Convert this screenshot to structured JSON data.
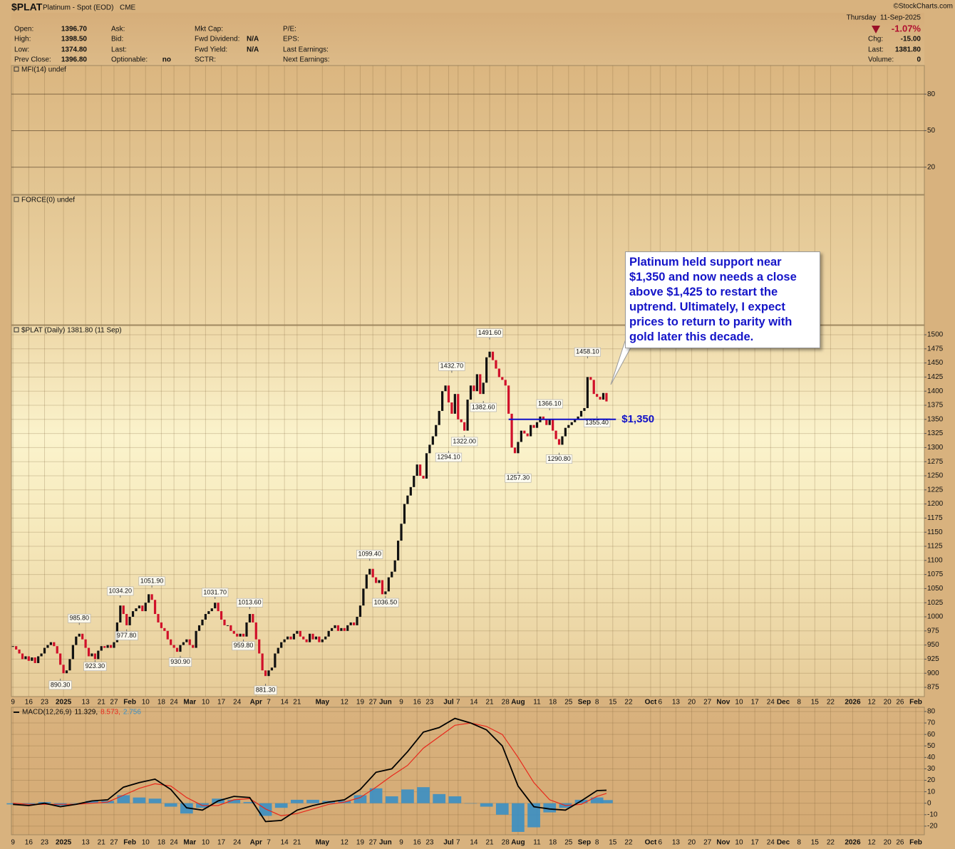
{
  "header": {
    "symbol": "$PLAT",
    "name": "Platinum - Spot (EOD)",
    "exchange": "CME",
    "source": "©StockCharts.com",
    "date": "Thursday  11-Sep-2025",
    "change_pct": "-1.07%",
    "quote": [
      [
        {
          "label": "Open:",
          "value": "1396.70"
        },
        {
          "label": "High:",
          "value": "1398.50"
        },
        {
          "label": "Low:",
          "value": "1374.80"
        },
        {
          "label": "Prev Close:",
          "value": "1396.80"
        }
      ],
      [
        {
          "label": "Ask:"
        },
        {
          "label": "Bid:"
        },
        {
          "label": "Last:"
        },
        {
          "label": "Optionable:",
          "value": "no"
        }
      ],
      [
        {
          "label": "Mkt Cap:"
        },
        {
          "label": "Fwd Dividend:",
          "value": "N/A"
        },
        {
          "label": "Fwd Yield:",
          "value": "N/A"
        },
        {
          "label": "SCTR:"
        }
      ],
      [
        {
          "label": "P/E:"
        },
        {
          "label": "EPS:"
        },
        {
          "label": "Last Earnings:"
        },
        {
          "label": "Next Earnings:"
        }
      ]
    ],
    "summary": [
      {
        "label": "Chg:",
        "value": "-15.00"
      },
      {
        "label": "Last:",
        "value": "1381.80"
      },
      {
        "label": "Volume:",
        "value": "0"
      }
    ]
  },
  "chart_data": {
    "type": "candlestick",
    "xlim": [
      -0.5,
      288.7
    ],
    "xticks": [
      {
        "value": 0,
        "label": "9"
      },
      {
        "value": 5,
        "label": "16"
      },
      {
        "value": 10,
        "label": "23"
      },
      {
        "value": 16,
        "label": "2025"
      },
      {
        "value": 23,
        "label": "13"
      },
      {
        "value": 28,
        "label": "21"
      },
      {
        "value": 32,
        "label": "27"
      },
      {
        "value": 37,
        "label": "Feb"
      },
      {
        "value": 42,
        "label": "10"
      },
      {
        "value": 47,
        "label": "18"
      },
      {
        "value": 51,
        "label": "24"
      },
      {
        "value": 56,
        "label": "Mar"
      },
      {
        "value": 61,
        "label": "10"
      },
      {
        "value": 66,
        "label": "17"
      },
      {
        "value": 71,
        "label": "24"
      },
      {
        "value": 77,
        "label": "Apr"
      },
      {
        "value": 81,
        "label": "7"
      },
      {
        "value": 86,
        "label": "14"
      },
      {
        "value": 90,
        "label": "21"
      },
      {
        "value": 98,
        "label": "May"
      },
      {
        "value": 105,
        "label": "12"
      },
      {
        "value": 110,
        "label": "19"
      },
      {
        "value": 114,
        "label": "27"
      },
      {
        "value": 118,
        "label": "Jun"
      },
      {
        "value": 123,
        "label": "9"
      },
      {
        "value": 128,
        "label": "16"
      },
      {
        "value": 132,
        "label": "23"
      },
      {
        "value": 138,
        "label": "Jul"
      },
      {
        "value": 141,
        "label": "7"
      },
      {
        "value": 146,
        "label": "14"
      },
      {
        "value": 151,
        "label": "21"
      },
      {
        "value": 156,
        "label": "28"
      },
      {
        "value": 160,
        "label": "Aug"
      },
      {
        "value": 166,
        "label": "11"
      },
      {
        "value": 171,
        "label": "18"
      },
      {
        "value": 176,
        "label": "25"
      },
      {
        "value": 181,
        "label": "Sep"
      },
      {
        "value": 185,
        "label": "8"
      },
      {
        "value": 190,
        "label": "15"
      },
      {
        "value": 195,
        "label": "22"
      },
      {
        "value": 202,
        "label": "Oct"
      },
      {
        "value": 205,
        "label": "6"
      },
      {
        "value": 210,
        "label": "13"
      },
      {
        "value": 215,
        "label": "20"
      },
      {
        "value": 220,
        "label": "27"
      },
      {
        "value": 225,
        "label": "Nov"
      },
      {
        "value": 230,
        "label": "10"
      },
      {
        "value": 235,
        "label": "17"
      },
      {
        "value": 240,
        "label": "24"
      },
      {
        "value": 244,
        "label": "Dec"
      },
      {
        "value": 249,
        "label": "8"
      },
      {
        "value": 254,
        "label": "15"
      },
      {
        "value": 259,
        "label": "22"
      },
      {
        "value": 266,
        "label": "2026"
      },
      {
        "value": 272,
        "label": "12"
      },
      {
        "value": 277,
        "label": "20"
      },
      {
        "value": 281,
        "label": "26"
      },
      {
        "value": 286,
        "label": "Feb"
      }
    ],
    "grid": true,
    "mfi": {
      "label": "MFI(14) undef",
      "ylim": [
        -2.4,
        103.5
      ],
      "yticks": [
        80,
        50,
        20
      ]
    },
    "force": {
      "label": "FORCE(0) undef"
    },
    "price": {
      "label": "$PLAT (Daily) 1381.80 (11 Sep)",
      "ylim": [
        858.6,
        1516.4
      ],
      "yticks": [
        875,
        900,
        925,
        950,
        975,
        1000,
        1025,
        1050,
        1075,
        1100,
        1125,
        1150,
        1175,
        1200,
        1225,
        1250,
        1275,
        1300,
        1325,
        1350,
        1375,
        1400,
        1425,
        1450,
        1475,
        1500
      ],
      "up_color": "#111111",
      "down_color": "#d0102a",
      "closes": [
        948,
        942,
        935,
        925,
        930,
        922,
        928,
        918,
        930,
        935,
        945,
        950,
        955,
        948,
        935,
        915,
        900,
        905,
        925,
        950,
        965,
        970,
        960,
        945,
        930,
        935,
        925,
        940,
        948,
        945,
        950,
        945,
        955,
        990,
        1020,
        1005,
        985,
        1000,
        1010,
        1015,
        1020,
        1010,
        1025,
        1040,
        1030,
        1005,
        990,
        980,
        975,
        960,
        950,
        945,
        938,
        950,
        955,
        960,
        950,
        945,
        975,
        985,
        995,
        1005,
        1010,
        1015,
        1025,
        1010,
        995,
        985,
        985,
        975,
        970,
        965,
        970,
        965,
        990,
        1005,
        990,
        960,
        935,
        905,
        895,
        905,
        910,
        935,
        945,
        955,
        960,
        965,
        960,
        970,
        975,
        965,
        960,
        955,
        970,
        960,
        965,
        955,
        960,
        965,
        975,
        980,
        985,
        975,
        980,
        975,
        985,
        990,
        985,
        1000,
        1020,
        1050,
        1075,
        1085,
        1070,
        1060,
        1065,
        1040,
        1045,
        1070,
        1080,
        1100,
        1135,
        1165,
        1200,
        1215,
        1230,
        1250,
        1270,
        1250,
        1245,
        1290,
        1305,
        1320,
        1340,
        1365,
        1400,
        1410,
        1380,
        1360,
        1395,
        1350,
        1345,
        1330,
        1385,
        1410,
        1400,
        1430,
        1395,
        1415,
        1460,
        1470,
        1455,
        1440,
        1425,
        1420,
        1410,
        1360,
        1300,
        1290,
        1310,
        1330,
        1325,
        1320,
        1340,
        1335,
        1345,
        1355,
        1350,
        1340,
        1350,
        1330,
        1315,
        1305,
        1320,
        1335,
        1340,
        1345,
        1350,
        1355,
        1365,
        1370,
        1425,
        1420,
        1395,
        1390,
        1385,
        1396.8,
        1381.8
      ],
      "annotations": [
        {
          "x": 15,
          "y": 890.3,
          "label": "890.30"
        },
        {
          "x": 21,
          "y": 985.8,
          "label": "985.80"
        },
        {
          "x": 26,
          "y": 923.3,
          "label": "923.30"
        },
        {
          "x": 34,
          "y": 1034.2,
          "label": "1034.20"
        },
        {
          "x": 36,
          "y": 977.8,
          "label": "977.80"
        },
        {
          "x": 44,
          "y": 1051.9,
          "label": "1051.90"
        },
        {
          "x": 53,
          "y": 930.9,
          "label": "930.90"
        },
        {
          "x": 64,
          "y": 1031.7,
          "label": "1031.70"
        },
        {
          "x": 73,
          "y": 959.8,
          "label": "959.80"
        },
        {
          "x": 75,
          "y": 1013.6,
          "label": "1013.60"
        },
        {
          "x": 80,
          "y": 881.3,
          "label": "881.30"
        },
        {
          "x": 113,
          "y": 1099.4,
          "label": "1099.40"
        },
        {
          "x": 118,
          "y": 1036.5,
          "label": "1036.50"
        },
        {
          "x": 139,
          "y": 1432.7,
          "label": "1432.70"
        },
        {
          "x": 138,
          "y": 1294.1,
          "label": "1294.10"
        },
        {
          "x": 143,
          "y": 1322.0,
          "label": "1322.00"
        },
        {
          "x": 149,
          "y": 1382.6,
          "label": "1382.60"
        },
        {
          "x": 151,
          "y": 1491.6,
          "label": "1491.60"
        },
        {
          "x": 160,
          "y": 1257.3,
          "label": "1257.30"
        },
        {
          "x": 170,
          "y": 1366.1,
          "label": "1366.10"
        },
        {
          "x": 173,
          "y": 1290.8,
          "label": "1290.80"
        },
        {
          "x": 182,
          "y": 1458.1,
          "label": "1458.10"
        },
        {
          "x": 185,
          "y": 1355.4,
          "label": "1355.40"
        }
      ],
      "support": {
        "value": 1350,
        "label": "$1,350",
        "x": [
          157,
          191
        ],
        "color": "#1010c8"
      },
      "callout": "Platinum held support near $1,350 and now needs a close above $1,425 to restart the uptrend. Ultimately, I expect prices to return to parity with gold later this decade."
    },
    "macd": {
      "label": "MACD(12,26,9)",
      "value_labels": [
        "11.329,",
        "8.573,",
        "2.756"
      ],
      "ylim": [
        -27.5,
        83.7
      ],
      "yticks": [
        80,
        70,
        60,
        50,
        40,
        30,
        20,
        10,
        0,
        -10,
        -20
      ],
      "x": [
        0,
        5,
        10,
        15,
        20,
        25,
        30,
        35,
        40,
        45,
        50,
        55,
        60,
        65,
        70,
        75,
        80,
        85,
        90,
        95,
        100,
        105,
        110,
        115,
        120,
        125,
        130,
        135,
        140,
        145,
        150,
        155,
        160,
        165,
        170,
        175,
        180,
        185,
        188
      ],
      "series": [
        {
          "name": "MACD",
          "color": "#000000",
          "values": [
            -1,
            -2,
            0,
            -3,
            -1,
            2,
            3,
            14,
            18,
            21,
            12,
            -4,
            -6,
            2,
            6,
            5,
            -16,
            -15,
            -6,
            -2,
            1,
            3,
            12,
            27,
            30,
            45,
            62,
            66,
            74,
            70,
            64,
            50,
            15,
            -3,
            -5,
            -6,
            2,
            11,
            11.329
          ]
        },
        {
          "name": "Signal",
          "color": "#e8281c",
          "values": [
            0,
            -1,
            -1,
            -1,
            -1,
            0,
            1,
            7,
            13,
            17,
            15,
            5,
            -2,
            -2,
            3,
            4,
            -5,
            -11,
            -9,
            -5,
            -1,
            1,
            5,
            14,
            24,
            33,
            48,
            58,
            68,
            70,
            67,
            60,
            40,
            18,
            3,
            -2,
            -1,
            6,
            8.573
          ]
        },
        {
          "name": "Histogram",
          "color": "#3a8fc4",
          "values": [
            -1,
            -1,
            1,
            -2,
            0,
            2,
            2,
            7,
            5,
            4,
            -3,
            -9,
            -4,
            4,
            3,
            1,
            -11,
            -4,
            3,
            3,
            2,
            2,
            7,
            13,
            6,
            12,
            14,
            8,
            6,
            0,
            -3,
            -10,
            -25,
            -21,
            -8,
            -4,
            3,
            5,
            2.756
          ]
        }
      ]
    }
  }
}
